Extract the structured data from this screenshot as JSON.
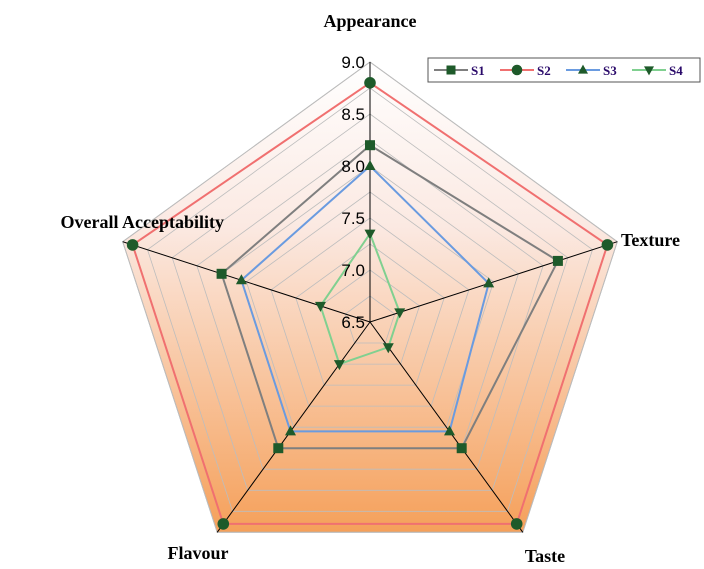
{
  "chart_data": {
    "type": "radar",
    "title": "",
    "axes": [
      "Appearance",
      "Texture",
      "Taste",
      "Flavour",
      "Overall Acceptability"
    ],
    "rlim": [
      6.5,
      9.0
    ],
    "ticks": [
      "6.5",
      "7.0",
      "7.5",
      "8.0",
      "8.5",
      "9.0"
    ],
    "grid": true,
    "legend_position": "top-right",
    "series": [
      {
        "name": "S1",
        "color": "#7f7f7f",
        "marker_color": "#1e5a2a",
        "marker": "square",
        "values": [
          8.2,
          8.4,
          8.0,
          8.0,
          8.0
        ]
      },
      {
        "name": "S2",
        "color": "#f07070",
        "marker_color": "#1e5a2a",
        "marker": "circle",
        "values": [
          8.8,
          8.9,
          8.9,
          8.9,
          8.9
        ]
      },
      {
        "name": "S3",
        "color": "#6a9be0",
        "marker_color": "#1e5a2a",
        "marker": "triangle-up",
        "values": [
          8.0,
          7.7,
          7.8,
          7.8,
          7.8
        ]
      },
      {
        "name": "S4",
        "color": "#80d090",
        "marker_color": "#1e5a2a",
        "marker": "triangle-down",
        "values": [
          7.35,
          6.8,
          6.8,
          7.0,
          7.0
        ]
      }
    ]
  }
}
